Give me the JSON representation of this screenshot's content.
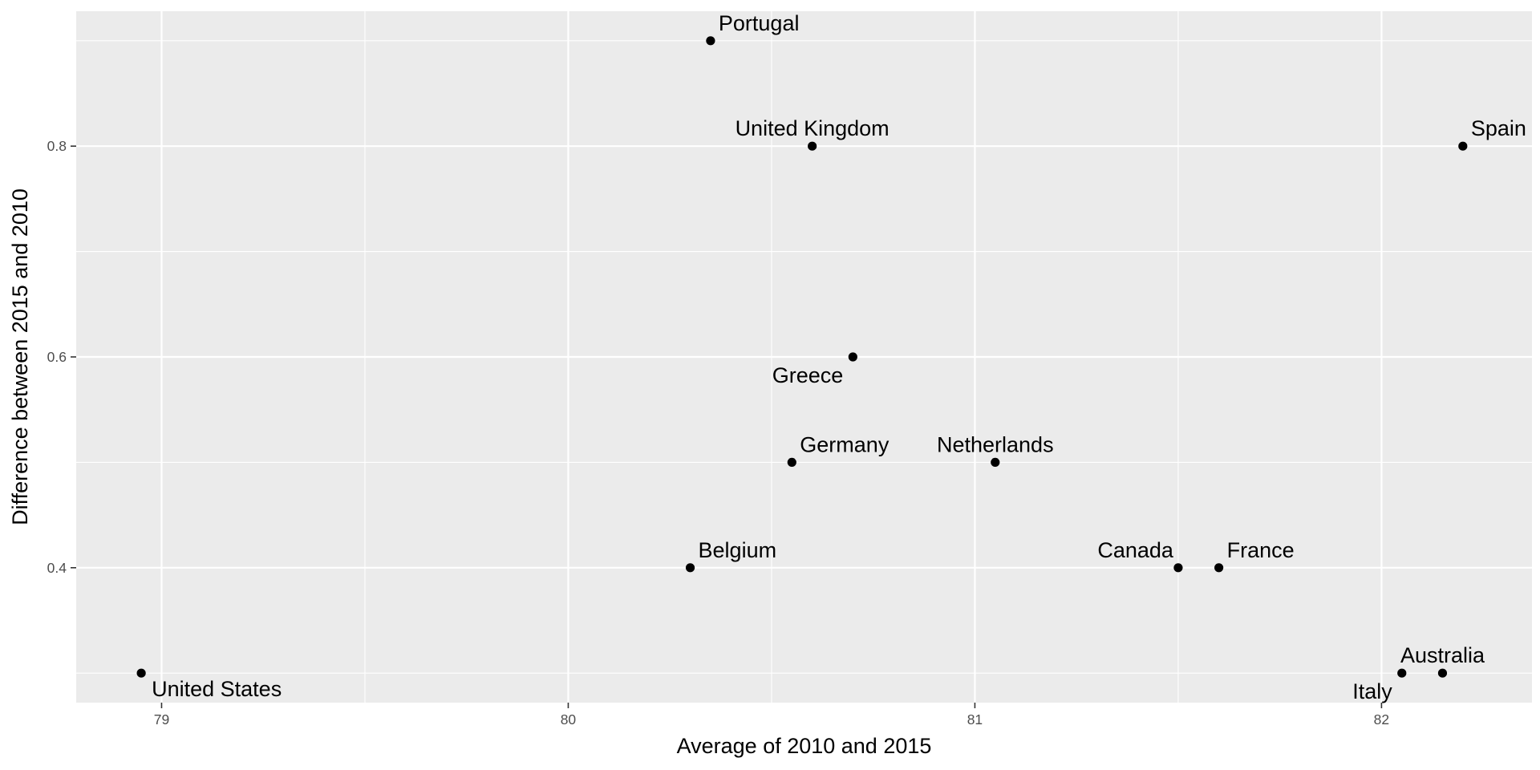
{
  "chart_data": {
    "type": "scatter",
    "title": "",
    "xlabel": "Average of 2010 and 2015",
    "ylabel": "Difference between 2015 and 2010",
    "xlim": [
      78.79,
      82.37
    ],
    "ylim": [
      0.272,
      0.928
    ],
    "x_ticks": [
      79,
      80,
      81,
      82
    ],
    "x_tick_labels": [
      "79",
      "80",
      "81",
      "82"
    ],
    "y_ticks": [
      0.4,
      0.6,
      0.8
    ],
    "y_tick_labels": [
      "0.4",
      "0.6",
      "0.8"
    ],
    "grid": true,
    "legend": "none",
    "colors": {
      "panel": "#ebebeb",
      "grid": "#ffffff",
      "point": "#000000",
      "tick_label": "#4d4d4d"
    },
    "points": [
      {
        "label": "United States",
        "x": 78.95,
        "y": 0.3,
        "label_position": "below-right"
      },
      {
        "label": "Belgium",
        "x": 80.3,
        "y": 0.4,
        "label_position": "above-right"
      },
      {
        "label": "Portugal",
        "x": 80.35,
        "y": 0.9,
        "label_position": "above-right"
      },
      {
        "label": "Germany",
        "x": 80.55,
        "y": 0.5,
        "label_position": "above-right"
      },
      {
        "label": "United Kingdom",
        "x": 80.6,
        "y": 0.8,
        "label_position": "above"
      },
      {
        "label": "Greece",
        "x": 80.7,
        "y": 0.6,
        "label_position": "below-left"
      },
      {
        "label": "Netherlands",
        "x": 81.05,
        "y": 0.5,
        "label_position": "above"
      },
      {
        "label": "Canada",
        "x": 81.5,
        "y": 0.4,
        "label_position": "above-left"
      },
      {
        "label": "France",
        "x": 81.6,
        "y": 0.4,
        "label_position": "above-right"
      },
      {
        "label": "Italy",
        "x": 82.05,
        "y": 0.3,
        "label_position": "below-left"
      },
      {
        "label": "Australia",
        "x": 82.15,
        "y": 0.3,
        "label_position": "above"
      },
      {
        "label": "Spain",
        "x": 82.2,
        "y": 0.8,
        "label_position": "above-right"
      }
    ]
  }
}
